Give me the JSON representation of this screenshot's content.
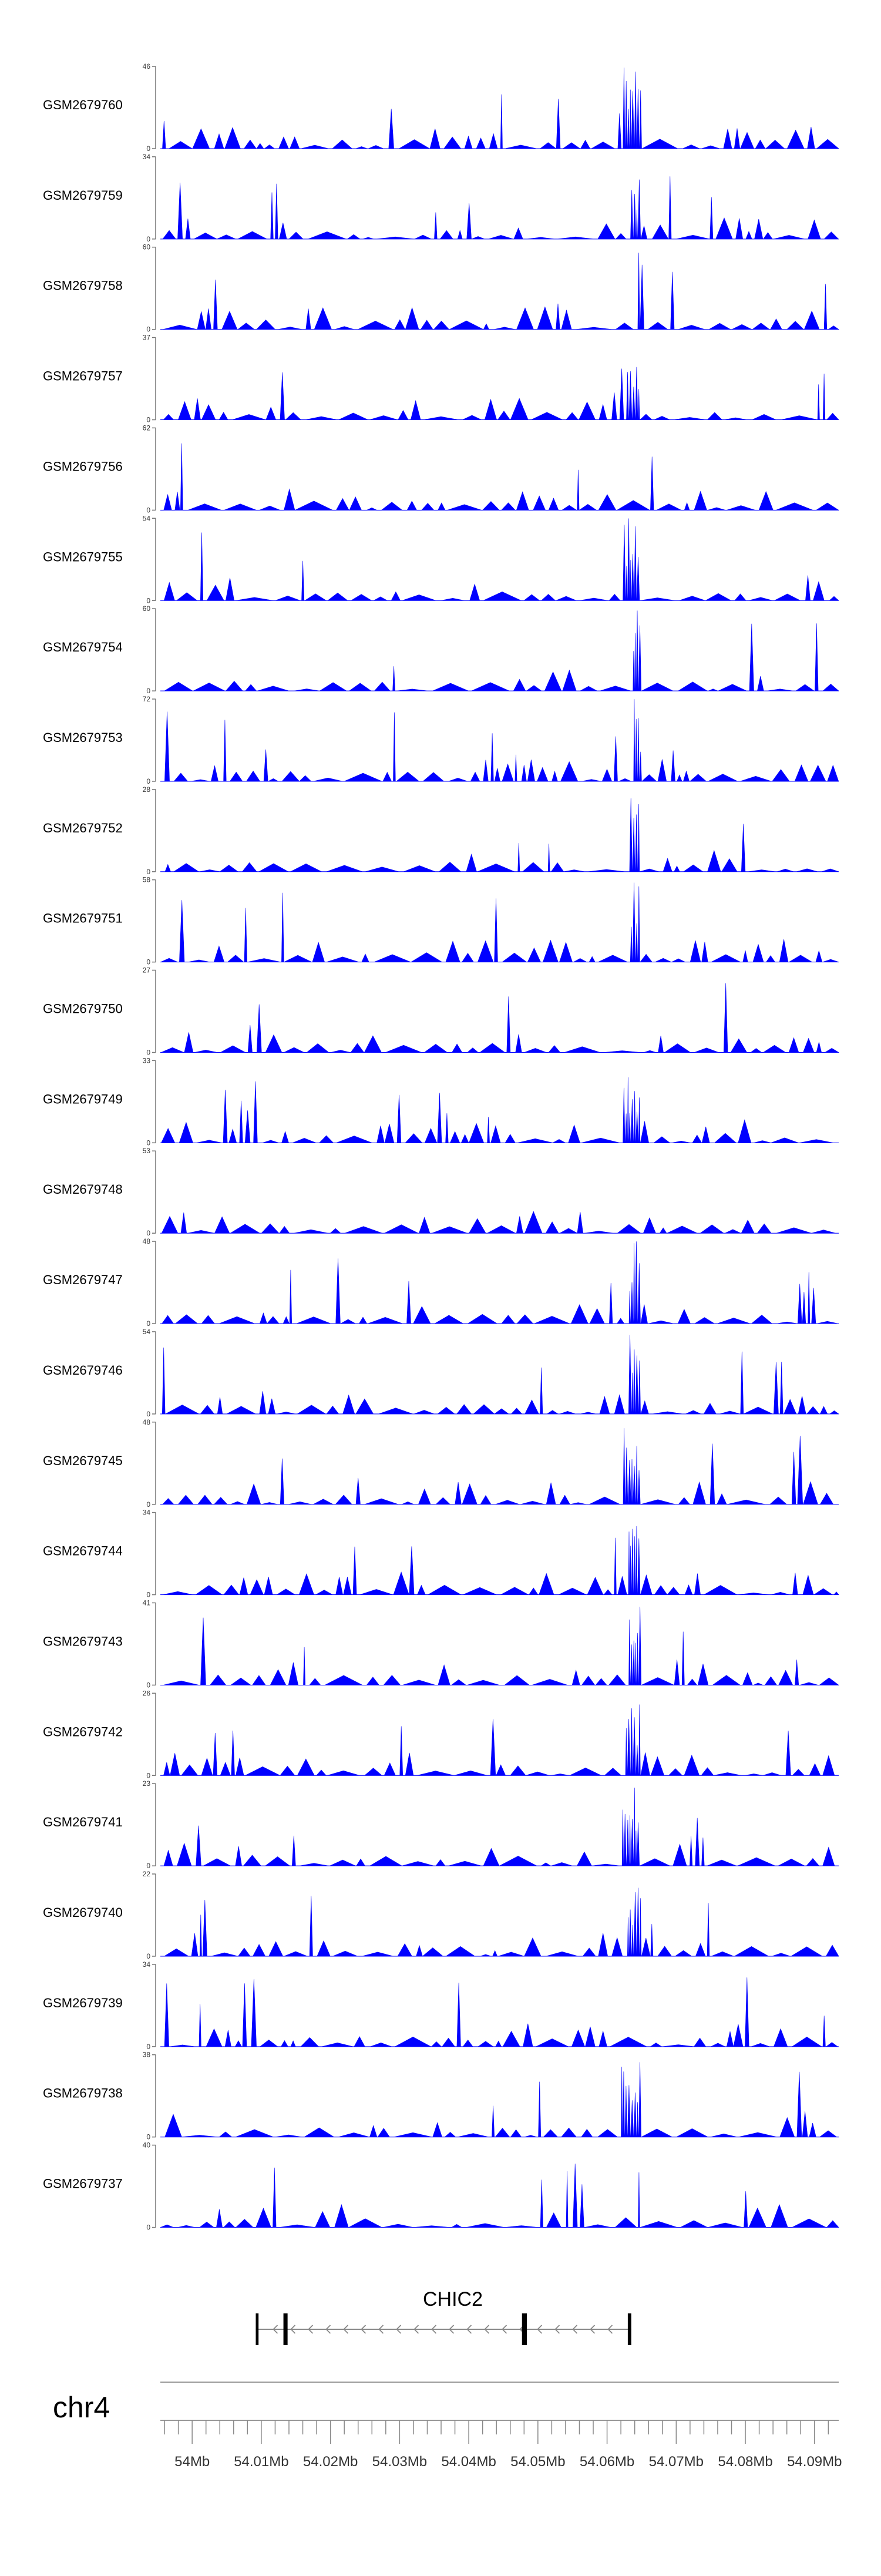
{
  "chart_data": {
    "type": "area",
    "description": "Stacked genome-browser coverage tracks (blue filled signal) over a gene model and chromosome axis",
    "fill_color": "#0000ff",
    "tracks": [
      {
        "label": "GSM2679760",
        "ymax": 46,
        "ymin": 0
      },
      {
        "label": "GSM2679759",
        "ymax": 34,
        "ymin": 0
      },
      {
        "label": "GSM2679758",
        "ymax": 60,
        "ymin": 0
      },
      {
        "label": "GSM2679757",
        "ymax": 37,
        "ymin": 0
      },
      {
        "label": "GSM2679756",
        "ymax": 62,
        "ymin": 0
      },
      {
        "label": "GSM2679755",
        "ymax": 54,
        "ymin": 0
      },
      {
        "label": "GSM2679754",
        "ymax": 60,
        "ymin": 0
      },
      {
        "label": "GSM2679753",
        "ymax": 72,
        "ymin": 0
      },
      {
        "label": "GSM2679752",
        "ymax": 28,
        "ymin": 0
      },
      {
        "label": "GSM2679751",
        "ymax": 58,
        "ymin": 0
      },
      {
        "label": "GSM2679750",
        "ymax": 27,
        "ymin": 0
      },
      {
        "label": "GSM2679749",
        "ymax": 33,
        "ymin": 0
      },
      {
        "label": "GSM2679748",
        "ymax": 53,
        "ymin": 0
      },
      {
        "label": "GSM2679747",
        "ymax": 48,
        "ymin": 0
      },
      {
        "label": "GSM2679746",
        "ymax": 54,
        "ymin": 0
      },
      {
        "label": "GSM2679745",
        "ymax": 48,
        "ymin": 0
      },
      {
        "label": "GSM2679744",
        "ymax": 34,
        "ymin": 0
      },
      {
        "label": "GSM2679743",
        "ymax": 41,
        "ymin": 0
      },
      {
        "label": "GSM2679742",
        "ymax": 26,
        "ymin": 0
      },
      {
        "label": "GSM2679741",
        "ymax": 23,
        "ymin": 0
      },
      {
        "label": "GSM2679740",
        "ymax": 22,
        "ymin": 0
      },
      {
        "label": "GSM2679739",
        "ymax": 34,
        "ymin": 0
      },
      {
        "label": "GSM2679738",
        "ymax": 38,
        "ymin": 0
      },
      {
        "label": "GSM2679737",
        "ymax": 40,
        "ymin": 0
      }
    ],
    "gene": {
      "name": "CHIC2",
      "strand": "-",
      "start_mb": 54.0092,
      "end_mb": 54.0635,
      "exons_mb": [
        [
          54.0092,
          54.0096
        ],
        [
          54.0132,
          54.0138
        ],
        [
          54.0477,
          54.0484
        ],
        [
          54.063,
          54.0635
        ]
      ]
    },
    "axis": {
      "chromosome": "chr4",
      "xlim_mb": [
        53.9954,
        54.0935
      ],
      "tick_labels": [
        "54Mb",
        "54.01Mb",
        "54.02Mb",
        "54.03Mb",
        "54.04Mb",
        "54.05Mb",
        "54.06Mb",
        "54.07Mb",
        "54.08Mb",
        "54.09Mb"
      ],
      "tick_values_mb": [
        54.0,
        54.01,
        54.02,
        54.03,
        54.04,
        54.05,
        54.06,
        54.07,
        54.08,
        54.09
      ],
      "minor_tick_step_mb": 0.002
    },
    "peak_region_mb": [
      54.063,
      54.0637
    ]
  }
}
